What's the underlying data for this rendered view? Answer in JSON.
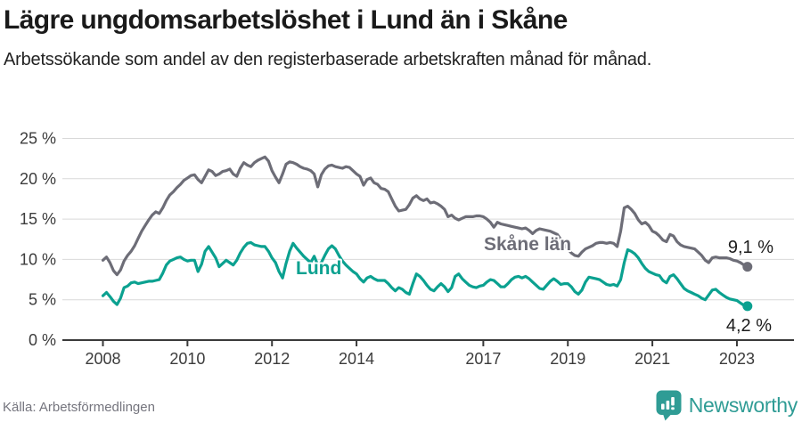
{
  "header": {
    "title": "Lägre ungdomsarbetslöshet i Lund än i Skåne",
    "subtitle": "Arbetssökande som andel av den registerbaserade arbetskraften månad för månad."
  },
  "footer": {
    "source": "Källa: Arbetsförmedlingen",
    "logo_text": "Newsworthy"
  },
  "colors": {
    "skane_line": "#6d6d77",
    "lund_line": "#0ba190",
    "logo_teal": "#2f9c95",
    "grid": "#d9d9d9",
    "axis_text": "#3c3c3c"
  },
  "chart_data": {
    "type": "line",
    "title": "Lägre ungdomsarbetslöshet i Lund än i Skåne",
    "subtitle": "Arbetssökande som andel av den registerbaserade arbetskraften månad för månad.",
    "x_start": "2008-01",
    "x_end": "2023-04",
    "frequency": "monthly",
    "grid": true,
    "legend_position": "inline-labels",
    "ylim": [
      0,
      25
    ],
    "y_ticks": [
      0,
      5,
      10,
      15,
      20,
      25
    ],
    "y_tick_suffix": " %",
    "x_tick_years": [
      2008,
      2010,
      2012,
      2014,
      2017,
      2019,
      2021,
      2023
    ],
    "x_tick_labels": [
      "2008",
      "2010",
      "2012",
      "2014",
      "2017",
      "2019",
      "2021",
      "2023"
    ],
    "series": [
      {
        "name": "Skåne län",
        "color": "#6d6d77",
        "end_label": "9,1 %",
        "end_value": 9.1,
        "values": [
          9.9,
          10.3,
          9.6,
          8.6,
          8.1,
          8.7,
          9.8,
          10.5,
          11.0,
          11.7,
          12.6,
          13.5,
          14.2,
          14.9,
          15.5,
          15.9,
          15.7,
          16.4,
          17.3,
          18.0,
          18.4,
          18.9,
          19.3,
          19.8,
          20.1,
          20.4,
          20.5,
          19.9,
          19.5,
          20.3,
          21.1,
          20.9,
          20.4,
          20.6,
          20.9,
          21.0,
          21.2,
          20.6,
          20.3,
          21.3,
          22.0,
          21.7,
          21.5,
          22.0,
          22.3,
          22.5,
          22.7,
          22.2,
          21.0,
          20.2,
          19.5,
          20.6,
          21.8,
          22.1,
          22.0,
          21.8,
          21.5,
          21.3,
          21.2,
          21.0,
          20.6,
          19.0,
          20.5,
          21.2,
          21.6,
          21.7,
          21.5,
          21.4,
          21.3,
          21.5,
          21.4,
          21.0,
          20.6,
          20.3,
          19.2,
          19.9,
          20.1,
          19.5,
          19.3,
          18.8,
          18.7,
          18.4,
          17.5,
          16.6,
          16.0,
          16.1,
          16.2,
          16.8,
          17.6,
          17.9,
          17.5,
          17.3,
          17.5,
          17.0,
          17.1,
          16.9,
          16.6,
          16.2,
          15.3,
          15.5,
          15.1,
          14.9,
          15.1,
          15.3,
          15.3,
          15.3,
          15.4,
          15.4,
          15.3,
          15.0,
          14.6,
          14.0,
          14.6,
          14.4,
          14.3,
          14.2,
          14.1,
          14.0,
          13.9,
          13.8,
          13.9,
          13.6,
          13.2,
          13.6,
          13.8,
          13.7,
          13.6,
          13.5,
          13.3,
          13.1,
          12.5,
          11.8,
          11.3,
          10.8,
          10.5,
          10.4,
          10.9,
          11.3,
          11.5,
          11.7,
          12.0,
          12.1,
          12.1,
          12.0,
          12.1,
          12.0,
          11.6,
          13.5,
          16.4,
          16.6,
          16.2,
          15.7,
          14.9,
          14.4,
          14.6,
          14.2,
          13.5,
          13.3,
          12.9,
          12.4,
          12.2,
          13.1,
          12.9,
          12.2,
          11.8,
          11.6,
          11.5,
          11.4,
          11.3,
          10.9,
          10.5,
          9.9,
          9.6,
          10.2,
          10.3,
          10.2,
          10.2,
          10.2,
          10.1,
          9.9,
          9.8,
          9.6,
          9.3,
          9.1
        ]
      },
      {
        "name": "Lund",
        "color": "#0ba190",
        "end_label": "4,2 %",
        "end_value": 4.2,
        "values": [
          5.5,
          5.9,
          5.4,
          4.8,
          4.4,
          5.2,
          6.5,
          6.7,
          7.1,
          7.2,
          7.0,
          7.1,
          7.2,
          7.3,
          7.3,
          7.4,
          7.5,
          8.3,
          9.3,
          9.8,
          10.0,
          10.2,
          10.3,
          10.0,
          9.8,
          9.9,
          9.9,
          8.5,
          9.4,
          11.0,
          11.6,
          10.9,
          10.2,
          9.1,
          9.5,
          9.9,
          9.6,
          9.3,
          9.9,
          10.8,
          11.5,
          12.0,
          12.1,
          11.8,
          11.7,
          11.6,
          11.6,
          11.0,
          10.2,
          9.6,
          8.5,
          7.7,
          9.5,
          11.0,
          12.0,
          11.4,
          10.9,
          10.4,
          10.0,
          9.6,
          10.4,
          9.3,
          9.6,
          10.5,
          11.3,
          11.7,
          11.3,
          10.5,
          9.8,
          9.3,
          8.9,
          8.5,
          8.2,
          7.6,
          7.2,
          7.7,
          7.9,
          7.6,
          7.4,
          7.4,
          7.4,
          7.0,
          6.5,
          6.1,
          6.5,
          6.3,
          5.9,
          5.7,
          7.0,
          8.2,
          7.9,
          7.4,
          6.8,
          6.3,
          6.1,
          6.6,
          7.0,
          6.6,
          6.0,
          6.5,
          7.9,
          8.2,
          7.6,
          7.2,
          6.8,
          6.6,
          6.5,
          6.7,
          6.8,
          7.2,
          7.5,
          7.4,
          7.0,
          6.6,
          6.6,
          7.0,
          7.5,
          7.8,
          7.9,
          7.7,
          7.9,
          7.6,
          7.2,
          6.8,
          6.4,
          6.3,
          6.8,
          7.3,
          7.6,
          7.3,
          6.9,
          7.0,
          7.0,
          6.6,
          6.0,
          5.7,
          6.2,
          7.2,
          7.8,
          7.7,
          7.6,
          7.5,
          7.2,
          6.9,
          6.8,
          6.9,
          6.7,
          7.5,
          9.6,
          11.2,
          11.0,
          10.7,
          10.2,
          9.5,
          8.9,
          8.5,
          8.3,
          8.1,
          8.0,
          7.4,
          7.1,
          7.9,
          8.1,
          7.6,
          7.0,
          6.4,
          6.1,
          5.9,
          5.7,
          5.5,
          5.2,
          5.0,
          5.6,
          6.2,
          6.3,
          5.9,
          5.6,
          5.3,
          5.1,
          5.0,
          4.9,
          4.6,
          4.3,
          4.2
        ]
      }
    ]
  }
}
